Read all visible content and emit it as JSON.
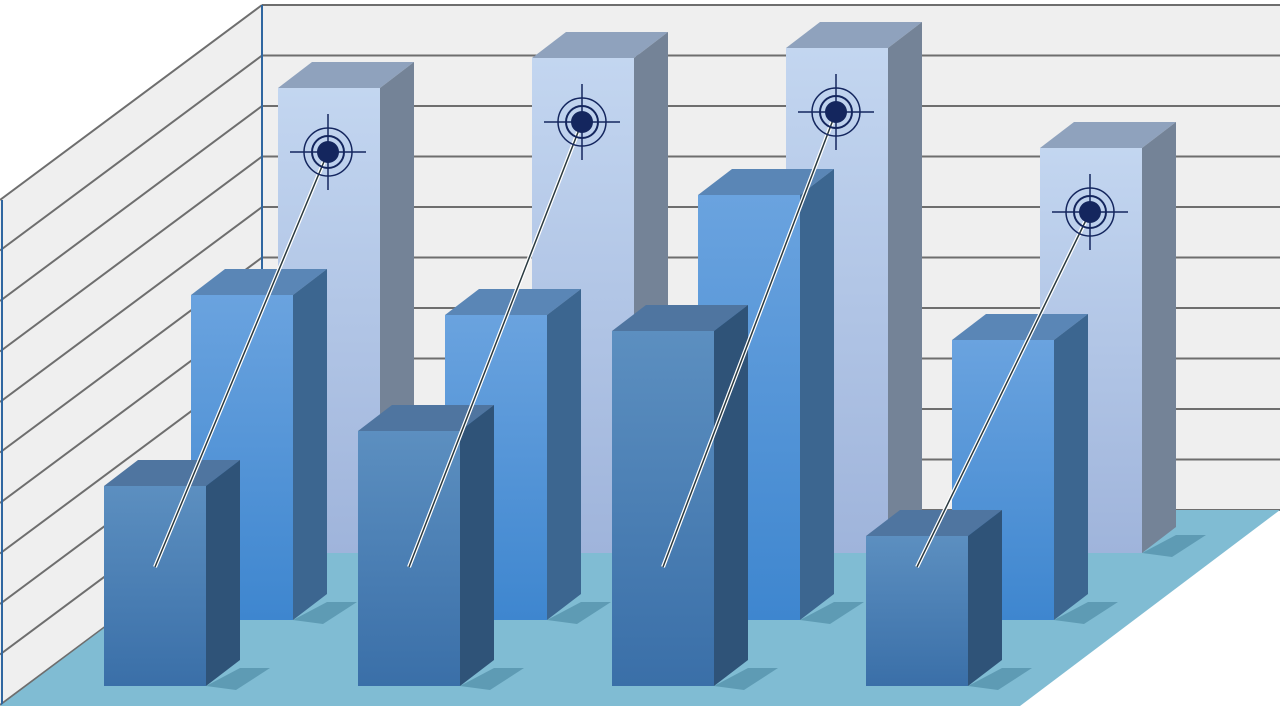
{
  "chart_data": {
    "type": "bar",
    "style": "3d-clustered",
    "title": "",
    "xlabel": "",
    "ylabel": "",
    "grid": true,
    "ylim": [
      0,
      10
    ],
    "categories": [
      "",
      "",
      "",
      ""
    ],
    "series": [
      {
        "values": [
          9.3,
          9.9,
          10.1,
          8.1
        ],
        "color": "#b4cbe8",
        "markers": "target"
      },
      {
        "values": [
          6.5,
          6.1,
          8.5,
          5.6
        ],
        "color": "#5b9bd8"
      },
      {
        "values": [
          4.0,
          5.1,
          7.1,
          3.0
        ],
        "color": "#4a7fb5"
      }
    ],
    "colors": {
      "wall": "#efefef",
      "gridline": "#6e6e6e",
      "floor": "#80bcd3",
      "target": "#14265e"
    }
  }
}
